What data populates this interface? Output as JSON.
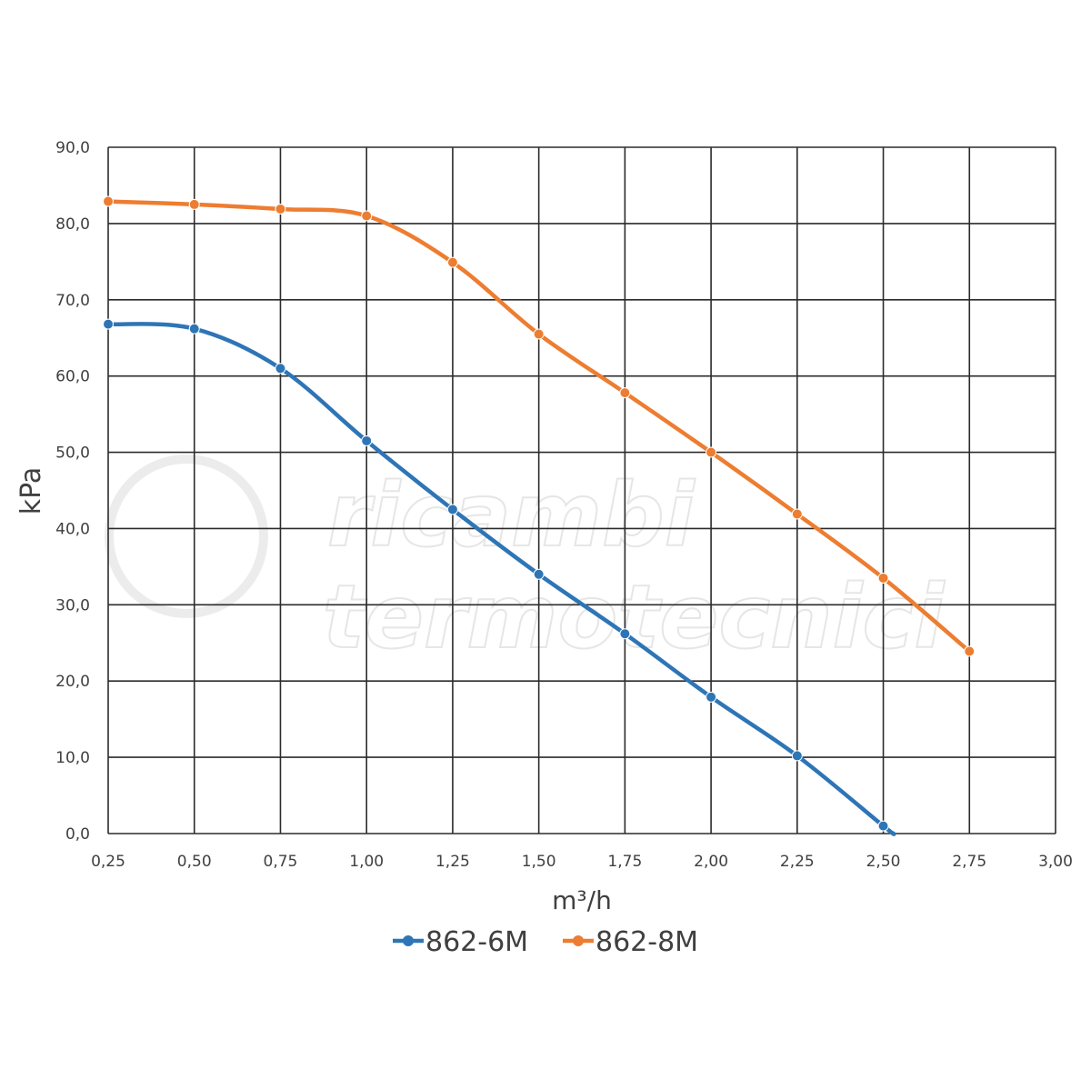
{
  "chart_data": {
    "type": "line",
    "title": "",
    "xlabel": "m³/h",
    "ylabel": "kPa",
    "xlim": [
      0.25,
      3.0
    ],
    "ylim": [
      0,
      90
    ],
    "x_ticks": [
      "0,25",
      "0,50",
      "0,75",
      "1,00",
      "1,25",
      "1,50",
      "1,75",
      "2,00",
      "2,25",
      "2,50",
      "2,75",
      "3,00"
    ],
    "y_ticks": [
      "0,0",
      "10,0",
      "20,0",
      "30,0",
      "40,0",
      "50,0",
      "60,0",
      "70,0",
      "80,0",
      "90,0"
    ],
    "grid": true,
    "legend_position": "bottom",
    "series": [
      {
        "name": "862-6M",
        "color": "#2e75b6",
        "x": [
          0.25,
          0.5,
          0.75,
          1.0,
          1.25,
          1.5,
          1.75,
          2.0,
          2.25,
          2.5
        ],
        "y": [
          66.8,
          66.2,
          61.0,
          51.5,
          42.5,
          34.0,
          26.2,
          17.9,
          10.2,
          1.0
        ],
        "end_x": 2.53,
        "end_y": 0.0
      },
      {
        "name": "862-8M",
        "color": "#ed7d31",
        "x": [
          0.25,
          0.5,
          0.75,
          1.0,
          1.25,
          1.5,
          1.75,
          2.0,
          2.25,
          2.5,
          2.75
        ],
        "y": [
          82.9,
          82.5,
          81.9,
          81.0,
          74.9,
          65.5,
          57.8,
          50.0,
          41.9,
          33.5,
          23.9
        ]
      }
    ],
    "watermark": {
      "line1": "ricambi",
      "line2": "termotecnici",
      "color": "#e6e6e6"
    }
  }
}
